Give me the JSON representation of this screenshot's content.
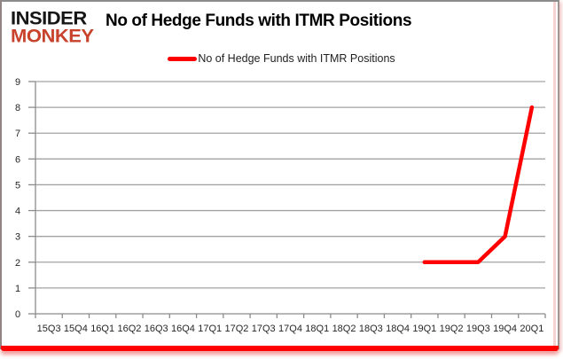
{
  "logo": {
    "line1": "INSIDER",
    "line2": "MONKEY",
    "top_color": "#151515",
    "bottom_color": "#c8432c"
  },
  "header": {
    "title": "No of Hedge Funds with ITMR Positions"
  },
  "legend": {
    "label": "No of Hedge Funds with ITMR Positions",
    "swatch_color": "#fe0000"
  },
  "chart_data": {
    "type": "line",
    "title": "No of Hedge Funds with ITMR Positions",
    "categories": [
      "15Q3",
      "15Q4",
      "16Q1",
      "16Q2",
      "16Q3",
      "16Q4",
      "17Q1",
      "17Q2",
      "17Q3",
      "17Q4",
      "18Q1",
      "18Q2",
      "18Q3",
      "18Q4",
      "19Q1",
      "19Q2",
      "19Q3",
      "19Q4",
      "20Q1"
    ],
    "series": [
      {
        "name": "No of Hedge Funds with ITMR Positions",
        "values": [
          null,
          null,
          null,
          null,
          null,
          null,
          null,
          null,
          null,
          null,
          null,
          null,
          null,
          null,
          2,
          2,
          2,
          3,
          8
        ]
      }
    ],
    "xlabel": "",
    "ylabel": "",
    "ylim": [
      0,
      9
    ],
    "yticks": [
      0,
      1,
      2,
      3,
      4,
      5,
      6,
      7,
      8,
      9
    ],
    "grid": true,
    "legend_position": "top-center",
    "line_color": "#fe0000",
    "grid_color": "#a3a3a3",
    "axis_color": "#8c8c8c",
    "tick_label_color": "#262626"
  }
}
